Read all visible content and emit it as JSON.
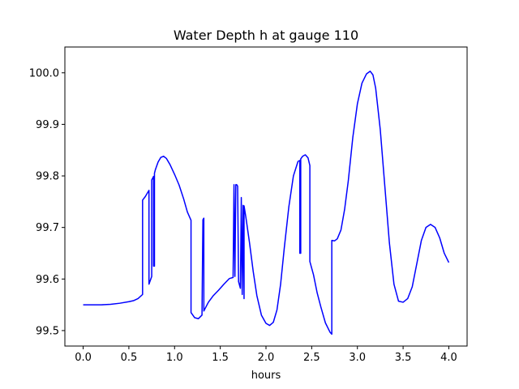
{
  "chart_data": {
    "type": "line",
    "title": "Water Depth h at gauge 110",
    "xlabel": "hours",
    "ylabel": "",
    "xlim": [
      -0.2,
      4.2
    ],
    "ylim": [
      99.47,
      100.05
    ],
    "xticks": [
      0.0,
      0.5,
      1.0,
      1.5,
      2.0,
      2.5,
      3.0,
      3.5,
      4.0
    ],
    "xtick_labels": [
      "0.0",
      "0.5",
      "1.0",
      "1.5",
      "2.0",
      "2.5",
      "3.0",
      "3.5",
      "4.0"
    ],
    "yticks": [
      99.5,
      99.6,
      99.7,
      99.8,
      99.9,
      100.0
    ],
    "ytick_labels": [
      "99.5",
      "99.6",
      "99.7",
      "99.8",
      "99.9",
      "100.0"
    ],
    "grid": false,
    "legend": "none",
    "series": [
      {
        "color": "#0000ff",
        "points": [
          [
            0.0,
            99.55
          ],
          [
            0.1,
            99.55
          ],
          [
            0.2,
            99.55
          ],
          [
            0.3,
            99.551
          ],
          [
            0.4,
            99.553
          ],
          [
            0.5,
            99.556
          ],
          [
            0.55,
            99.558
          ],
          [
            0.6,
            99.562
          ],
          [
            0.65,
            99.57
          ],
          [
            0.65,
            99.753
          ],
          [
            0.68,
            99.76
          ],
          [
            0.72,
            99.772
          ],
          [
            0.72,
            99.59
          ],
          [
            0.75,
            99.605
          ],
          [
            0.75,
            99.792
          ],
          [
            0.77,
            99.799
          ],
          [
            0.77,
            99.625
          ],
          [
            0.78,
            99.625
          ],
          [
            0.78,
            99.805
          ],
          [
            0.79,
            99.812
          ],
          [
            0.82,
            99.827
          ],
          [
            0.85,
            99.836
          ],
          [
            0.88,
            99.838
          ],
          [
            0.91,
            99.834
          ],
          [
            0.95,
            99.822
          ],
          [
            1.0,
            99.803
          ],
          [
            1.05,
            99.782
          ],
          [
            1.1,
            99.755
          ],
          [
            1.14,
            99.73
          ],
          [
            1.18,
            99.714
          ],
          [
            1.18,
            99.535
          ],
          [
            1.22,
            99.525
          ],
          [
            1.26,
            99.523
          ],
          [
            1.3,
            99.53
          ],
          [
            1.31,
            99.715
          ],
          [
            1.32,
            99.718
          ],
          [
            1.32,
            99.538
          ],
          [
            1.37,
            99.555
          ],
          [
            1.42,
            99.567
          ],
          [
            1.48,
            99.578
          ],
          [
            1.54,
            99.59
          ],
          [
            1.6,
            99.601
          ],
          [
            1.64,
            99.603
          ],
          [
            1.65,
            99.783
          ],
          [
            1.66,
            99.605
          ],
          [
            1.67,
            99.783
          ],
          [
            1.68,
            99.783
          ],
          [
            1.69,
            99.78
          ],
          [
            1.7,
            99.595
          ],
          [
            1.72,
            99.582
          ],
          [
            1.73,
            99.758
          ],
          [
            1.74,
            99.57
          ],
          [
            1.75,
            99.743
          ],
          [
            1.76,
            99.562
          ],
          [
            1.76,
            99.742
          ],
          [
            1.78,
            99.72
          ],
          [
            1.82,
            99.67
          ],
          [
            1.86,
            99.615
          ],
          [
            1.9,
            99.568
          ],
          [
            1.95,
            99.53
          ],
          [
            2.0,
            99.514
          ],
          [
            2.04,
            99.51
          ],
          [
            2.08,
            99.516
          ],
          [
            2.12,
            99.54
          ],
          [
            2.16,
            99.59
          ],
          [
            2.2,
            99.66
          ],
          [
            2.25,
            99.74
          ],
          [
            2.3,
            99.8
          ],
          [
            2.35,
            99.828
          ],
          [
            2.37,
            99.83
          ],
          [
            2.37,
            99.65
          ],
          [
            2.38,
            99.65
          ],
          [
            2.38,
            99.833
          ],
          [
            2.4,
            99.838
          ],
          [
            2.43,
            99.841
          ],
          [
            2.46,
            99.835
          ],
          [
            2.48,
            99.82
          ],
          [
            2.48,
            99.634
          ],
          [
            2.52,
            99.608
          ],
          [
            2.56,
            99.573
          ],
          [
            2.6,
            99.546
          ],
          [
            2.65,
            99.515
          ],
          [
            2.7,
            99.497
          ],
          [
            2.72,
            99.493
          ],
          [
            2.72,
            99.675
          ],
          [
            2.75,
            99.674
          ],
          [
            2.78,
            99.678
          ],
          [
            2.82,
            99.695
          ],
          [
            2.86,
            99.735
          ],
          [
            2.9,
            99.79
          ],
          [
            2.95,
            99.875
          ],
          [
            3.0,
            99.94
          ],
          [
            3.05,
            99.98
          ],
          [
            3.1,
            99.998
          ],
          [
            3.14,
            100.003
          ],
          [
            3.17,
            99.996
          ],
          [
            3.2,
            99.97
          ],
          [
            3.25,
            99.89
          ],
          [
            3.3,
            99.78
          ],
          [
            3.35,
            99.67
          ],
          [
            3.4,
            99.59
          ],
          [
            3.45,
            99.557
          ],
          [
            3.5,
            99.555
          ],
          [
            3.55,
            99.562
          ],
          [
            3.6,
            99.585
          ],
          [
            3.65,
            99.63
          ],
          [
            3.7,
            99.675
          ],
          [
            3.75,
            99.7
          ],
          [
            3.8,
            99.706
          ],
          [
            3.85,
            99.7
          ],
          [
            3.9,
            99.68
          ],
          [
            3.95,
            99.65
          ],
          [
            4.0,
            99.632
          ]
        ]
      }
    ]
  }
}
